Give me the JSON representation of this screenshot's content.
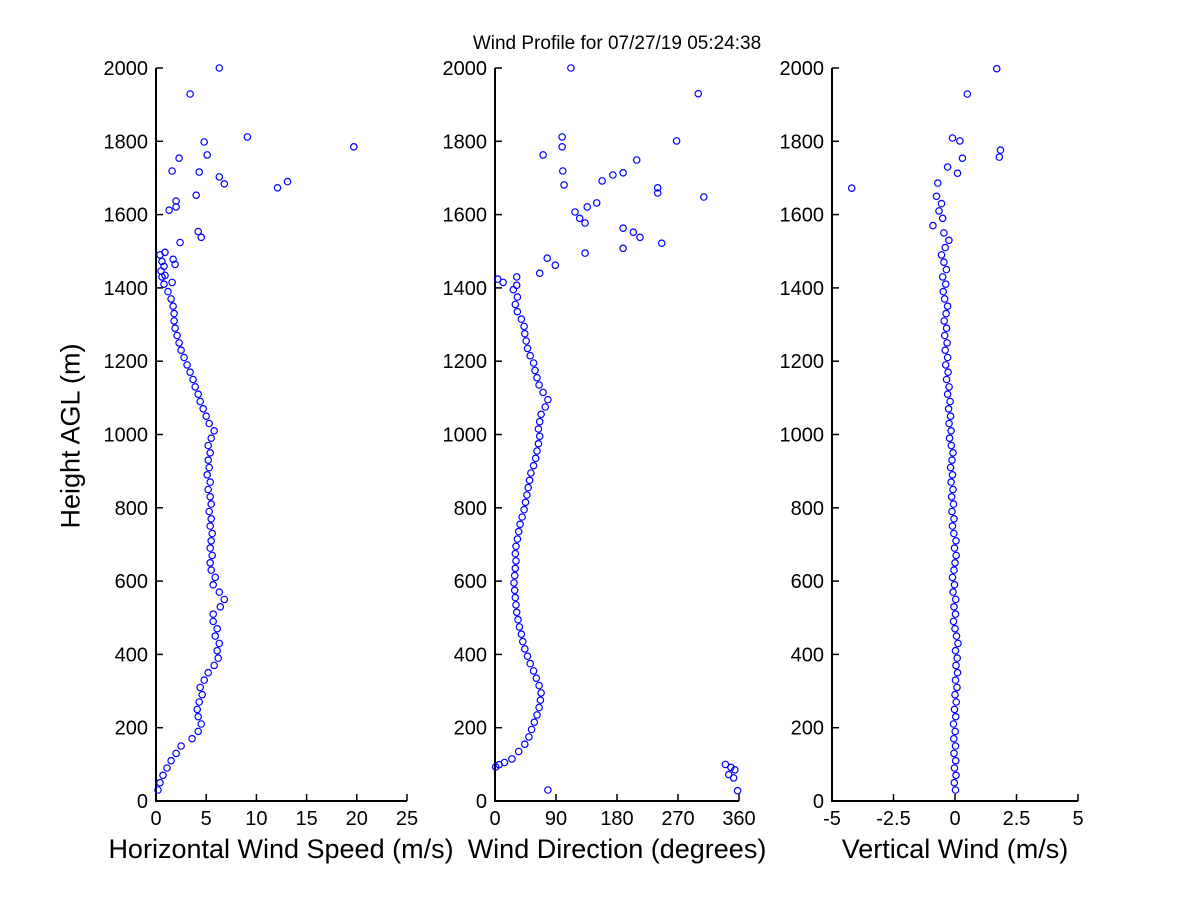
{
  "figure": {
    "background": "#ffffff",
    "text_color": "#000000"
  },
  "chart_data": [
    {
      "type": "scatter",
      "title": "",
      "xlabel": "Horizontal Wind Speed (m/s)",
      "ylabel": "Height AGL (m)",
      "xlim": [
        0,
        25
      ],
      "xticks": [
        0,
        5,
        10,
        15,
        20,
        25
      ],
      "ylim": [
        0,
        2000
      ],
      "yticks": [
        0,
        200,
        400,
        600,
        800,
        1000,
        1200,
        1400,
        1600,
        1800,
        2000
      ],
      "grid": false,
      "marker": {
        "shape": "circle",
        "color": "#0000ff",
        "filled": false
      },
      "points": [
        [
          0.2,
          30
        ],
        [
          0.4,
          50
        ],
        [
          0.7,
          70
        ],
        [
          1.1,
          90
        ],
        [
          1.5,
          110
        ],
        [
          2.0,
          130
        ],
        [
          2.5,
          150
        ],
        [
          3.6,
          170
        ],
        [
          4.2,
          190
        ],
        [
          4.5,
          210
        ],
        [
          4.2,
          230
        ],
        [
          4.1,
          250
        ],
        [
          4.3,
          270
        ],
        [
          4.6,
          290
        ],
        [
          4.4,
          310
        ],
        [
          4.8,
          330
        ],
        [
          5.2,
          350
        ],
        [
          5.8,
          370
        ],
        [
          6.2,
          390
        ],
        [
          6.1,
          410
        ],
        [
          6.3,
          430
        ],
        [
          5.9,
          450
        ],
        [
          6.1,
          470
        ],
        [
          5.7,
          490
        ],
        [
          5.7,
          510
        ],
        [
          6.4,
          530
        ],
        [
          6.8,
          550
        ],
        [
          6.3,
          570
        ],
        [
          5.7,
          590
        ],
        [
          5.9,
          610
        ],
        [
          5.5,
          630
        ],
        [
          5.4,
          650
        ],
        [
          5.6,
          670
        ],
        [
          5.4,
          690
        ],
        [
          5.5,
          710
        ],
        [
          5.6,
          730
        ],
        [
          5.4,
          750
        ],
        [
          5.5,
          770
        ],
        [
          5.3,
          790
        ],
        [
          5.5,
          810
        ],
        [
          5.4,
          830
        ],
        [
          5.2,
          850
        ],
        [
          5.4,
          870
        ],
        [
          5.1,
          890
        ],
        [
          5.3,
          910
        ],
        [
          5.2,
          930
        ],
        [
          5.4,
          950
        ],
        [
          5.2,
          970
        ],
        [
          5.5,
          990
        ],
        [
          5.8,
          1010
        ],
        [
          5.3,
          1030
        ],
        [
          5.0,
          1050
        ],
        [
          4.7,
          1070
        ],
        [
          4.4,
          1090
        ],
        [
          4.2,
          1110
        ],
        [
          3.9,
          1130
        ],
        [
          3.7,
          1150
        ],
        [
          3.4,
          1170
        ],
        [
          3.1,
          1190
        ],
        [
          2.8,
          1210
        ],
        [
          2.5,
          1230
        ],
        [
          2.3,
          1250
        ],
        [
          2.1,
          1270
        ],
        [
          1.9,
          1290
        ],
        [
          1.8,
          1310
        ],
        [
          1.8,
          1330
        ],
        [
          1.7,
          1350
        ],
        [
          1.5,
          1370
        ],
        [
          1.2,
          1390
        ],
        [
          0.8,
          1410
        ],
        [
          0.6,
          1430
        ],
        [
          1.6,
          1415
        ],
        [
          0.9,
          1434
        ],
        [
          0.5,
          1446
        ],
        [
          0.8,
          1459
        ],
        [
          1.9,
          1464
        ],
        [
          0.6,
          1472
        ],
        [
          1.7,
          1478
        ],
        [
          0.4,
          1490
        ],
        [
          0.9,
          1497
        ],
        [
          2.4,
          1524
        ],
        [
          4.5,
          1538
        ],
        [
          4.2,
          1554
        ],
        [
          1.3,
          1612
        ],
        [
          2.0,
          1621
        ],
        [
          2.0,
          1637
        ],
        [
          4.0,
          1653
        ],
        [
          12.1,
          1673
        ],
        [
          6.8,
          1684
        ],
        [
          13.1,
          1690
        ],
        [
          6.3,
          1703
        ],
        [
          4.3,
          1716
        ],
        [
          1.6,
          1719
        ],
        [
          2.3,
          1754
        ],
        [
          5.1,
          1763
        ],
        [
          19.7,
          1785
        ],
        [
          4.8,
          1798
        ],
        [
          9.1,
          1812
        ],
        [
          3.4,
          1929
        ],
        [
          6.3,
          2000
        ]
      ]
    },
    {
      "type": "scatter",
      "title": "Wind Profile for  07/27/19 05:24:38",
      "xlabel": "Wind Direction (degrees)",
      "ylabel": "",
      "xlim": [
        0,
        360
      ],
      "xticks": [
        0,
        90,
        180,
        270,
        360
      ],
      "ylim": [
        0,
        2000
      ],
      "yticks": [
        0,
        200,
        400,
        600,
        800,
        1000,
        1200,
        1400,
        1600,
        1800,
        2000
      ],
      "grid": false,
      "marker": {
        "shape": "circle",
        "color": "#0000ff",
        "filled": false
      },
      "points": [
        [
          78,
          30
        ],
        [
          1,
          93
        ],
        [
          6,
          99
        ],
        [
          14,
          105
        ],
        [
          340,
          100
        ],
        [
          348,
          92
        ],
        [
          354,
          85
        ],
        [
          345,
          72
        ],
        [
          352,
          63
        ],
        [
          358,
          28
        ],
        [
          25,
          115
        ],
        [
          35,
          135
        ],
        [
          44,
          155
        ],
        [
          50,
          175
        ],
        [
          54,
          195
        ],
        [
          58,
          215
        ],
        [
          62,
          235
        ],
        [
          65,
          255
        ],
        [
          67,
          275
        ],
        [
          68,
          295
        ],
        [
          65,
          315
        ],
        [
          61,
          335
        ],
        [
          57,
          355
        ],
        [
          52,
          375
        ],
        [
          48,
          395
        ],
        [
          44,
          415
        ],
        [
          41,
          435
        ],
        [
          39,
          455
        ],
        [
          36,
          475
        ],
        [
          34,
          495
        ],
        [
          32,
          515
        ],
        [
          31,
          535
        ],
        [
          30,
          555
        ],
        [
          29,
          575
        ],
        [
          28,
          595
        ],
        [
          29,
          615
        ],
        [
          30,
          635
        ],
        [
          31,
          655
        ],
        [
          30,
          675
        ],
        [
          31,
          695
        ],
        [
          33,
          715
        ],
        [
          35,
          735
        ],
        [
          37,
          755
        ],
        [
          40,
          775
        ],
        [
          43,
          795
        ],
        [
          45,
          815
        ],
        [
          47,
          835
        ],
        [
          49,
          855
        ],
        [
          51,
          875
        ],
        [
          53,
          895
        ],
        [
          57,
          915
        ],
        [
          60,
          935
        ],
        [
          62,
          955
        ],
        [
          64,
          975
        ],
        [
          66,
          995
        ],
        [
          64,
          1015
        ],
        [
          66,
          1035
        ],
        [
          68,
          1055
        ],
        [
          74,
          1075
        ],
        [
          78,
          1095
        ],
        [
          71,
          1115
        ],
        [
          65,
          1135
        ],
        [
          62,
          1155
        ],
        [
          59,
          1175
        ],
        [
          57,
          1195
        ],
        [
          52,
          1215
        ],
        [
          48,
          1235
        ],
        [
          46,
          1255
        ],
        [
          44,
          1275
        ],
        [
          43,
          1295
        ],
        [
          39,
          1315
        ],
        [
          33,
          1335
        ],
        [
          30,
          1355
        ],
        [
          33,
          1375
        ],
        [
          27,
          1395
        ],
        [
          12,
          1415
        ],
        [
          4,
          1424
        ],
        [
          32,
          1430
        ],
        [
          32,
          1407
        ],
        [
          66,
          1440
        ],
        [
          89,
          1462
        ],
        [
          77,
          1481
        ],
        [
          133,
          1495
        ],
        [
          189,
          1508
        ],
        [
          246,
          1522
        ],
        [
          214,
          1538
        ],
        [
          204,
          1552
        ],
        [
          189,
          1563
        ],
        [
          133,
          1577
        ],
        [
          125,
          1590
        ],
        [
          118,
          1607
        ],
        [
          136,
          1621
        ],
        [
          150,
          1632
        ],
        [
          308,
          1648
        ],
        [
          240,
          1659
        ],
        [
          240,
          1673
        ],
        [
          102,
          1681
        ],
        [
          158,
          1692
        ],
        [
          174,
          1708
        ],
        [
          189,
          1714
        ],
        [
          100,
          1719
        ],
        [
          209,
          1749
        ],
        [
          71,
          1763
        ],
        [
          99,
          1785
        ],
        [
          268,
          1801
        ],
        [
          99,
          1812
        ],
        [
          300,
          1930
        ],
        [
          112,
          2000
        ]
      ]
    },
    {
      "type": "scatter",
      "title": "",
      "xlabel": "Vertical Wind (m/s)",
      "ylabel": "",
      "xlim": [
        -5,
        5
      ],
      "xticks": [
        -5,
        -2.5,
        0,
        2.5,
        5
      ],
      "ylim": [
        0,
        2000
      ],
      "yticks": [
        0,
        200,
        400,
        600,
        800,
        1000,
        1200,
        1400,
        1600,
        1800,
        2000
      ],
      "grid": false,
      "marker": {
        "shape": "circle",
        "color": "#0000ff",
        "filled": false
      },
      "points": [
        [
          0.02,
          30
        ],
        [
          -0.03,
          50
        ],
        [
          0.04,
          70
        ],
        [
          -0.02,
          90
        ],
        [
          0.03,
          110
        ],
        [
          -0.04,
          130
        ],
        [
          0.02,
          150
        ],
        [
          -0.05,
          170
        ],
        [
          0.01,
          190
        ],
        [
          -0.06,
          210
        ],
        [
          0.03,
          230
        ],
        [
          -0.02,
          250
        ],
        [
          0.05,
          270
        ],
        [
          0.0,
          290
        ],
        [
          0.08,
          310
        ],
        [
          0.02,
          330
        ],
        [
          0.1,
          350
        ],
        [
          0.04,
          370
        ],
        [
          0.09,
          390
        ],
        [
          0.02,
          410
        ],
        [
          0.12,
          430
        ],
        [
          0.06,
          450
        ],
        [
          0.0,
          470
        ],
        [
          -0.06,
          490
        ],
        [
          0.02,
          510
        ],
        [
          -0.04,
          530
        ],
        [
          0.03,
          550
        ],
        [
          -0.08,
          570
        ],
        [
          -0.02,
          590
        ],
        [
          -0.1,
          610
        ],
        [
          -0.04,
          630
        ],
        [
          0.0,
          650
        ],
        [
          0.05,
          670
        ],
        [
          -0.02,
          690
        ],
        [
          0.04,
          710
        ],
        [
          -0.05,
          730
        ],
        [
          -0.1,
          750
        ],
        [
          -0.04,
          770
        ],
        [
          -0.12,
          790
        ],
        [
          -0.06,
          810
        ],
        [
          -0.14,
          830
        ],
        [
          -0.08,
          850
        ],
        [
          -0.16,
          870
        ],
        [
          -0.1,
          890
        ],
        [
          -0.18,
          910
        ],
        [
          -0.12,
          930
        ],
        [
          -0.08,
          950
        ],
        [
          -0.15,
          970
        ],
        [
          -0.22,
          990
        ],
        [
          -0.16,
          1010
        ],
        [
          -0.24,
          1030
        ],
        [
          -0.18,
          1050
        ],
        [
          -0.26,
          1070
        ],
        [
          -0.2,
          1090
        ],
        [
          -0.3,
          1110
        ],
        [
          -0.24,
          1130
        ],
        [
          -0.34,
          1150
        ],
        [
          -0.28,
          1170
        ],
        [
          -0.38,
          1190
        ],
        [
          -0.3,
          1210
        ],
        [
          -0.4,
          1230
        ],
        [
          -0.32,
          1250
        ],
        [
          -0.42,
          1270
        ],
        [
          -0.34,
          1290
        ],
        [
          -0.44,
          1310
        ],
        [
          -0.36,
          1330
        ],
        [
          -0.3,
          1350
        ],
        [
          -0.42,
          1370
        ],
        [
          -0.48,
          1390
        ],
        [
          -0.38,
          1410
        ],
        [
          -0.5,
          1430
        ],
        [
          -0.35,
          1450
        ],
        [
          -0.45,
          1470
        ],
        [
          -0.55,
          1490
        ],
        [
          -0.4,
          1510
        ],
        [
          -0.25,
          1530
        ],
        [
          -0.45,
          1550
        ],
        [
          -0.9,
          1570
        ],
        [
          -0.5,
          1590
        ],
        [
          -0.65,
          1610
        ],
        [
          -0.55,
          1630
        ],
        [
          -0.75,
          1650
        ],
        [
          -4.2,
          1672
        ],
        [
          -0.7,
          1686
        ],
        [
          0.1,
          1713
        ],
        [
          -0.3,
          1730
        ],
        [
          0.3,
          1754
        ],
        [
          1.8,
          1757
        ],
        [
          1.85,
          1776
        ],
        [
          0.2,
          1801
        ],
        [
          -0.1,
          1809
        ],
        [
          0.5,
          1929
        ],
        [
          1.7,
          1998
        ]
      ]
    }
  ]
}
